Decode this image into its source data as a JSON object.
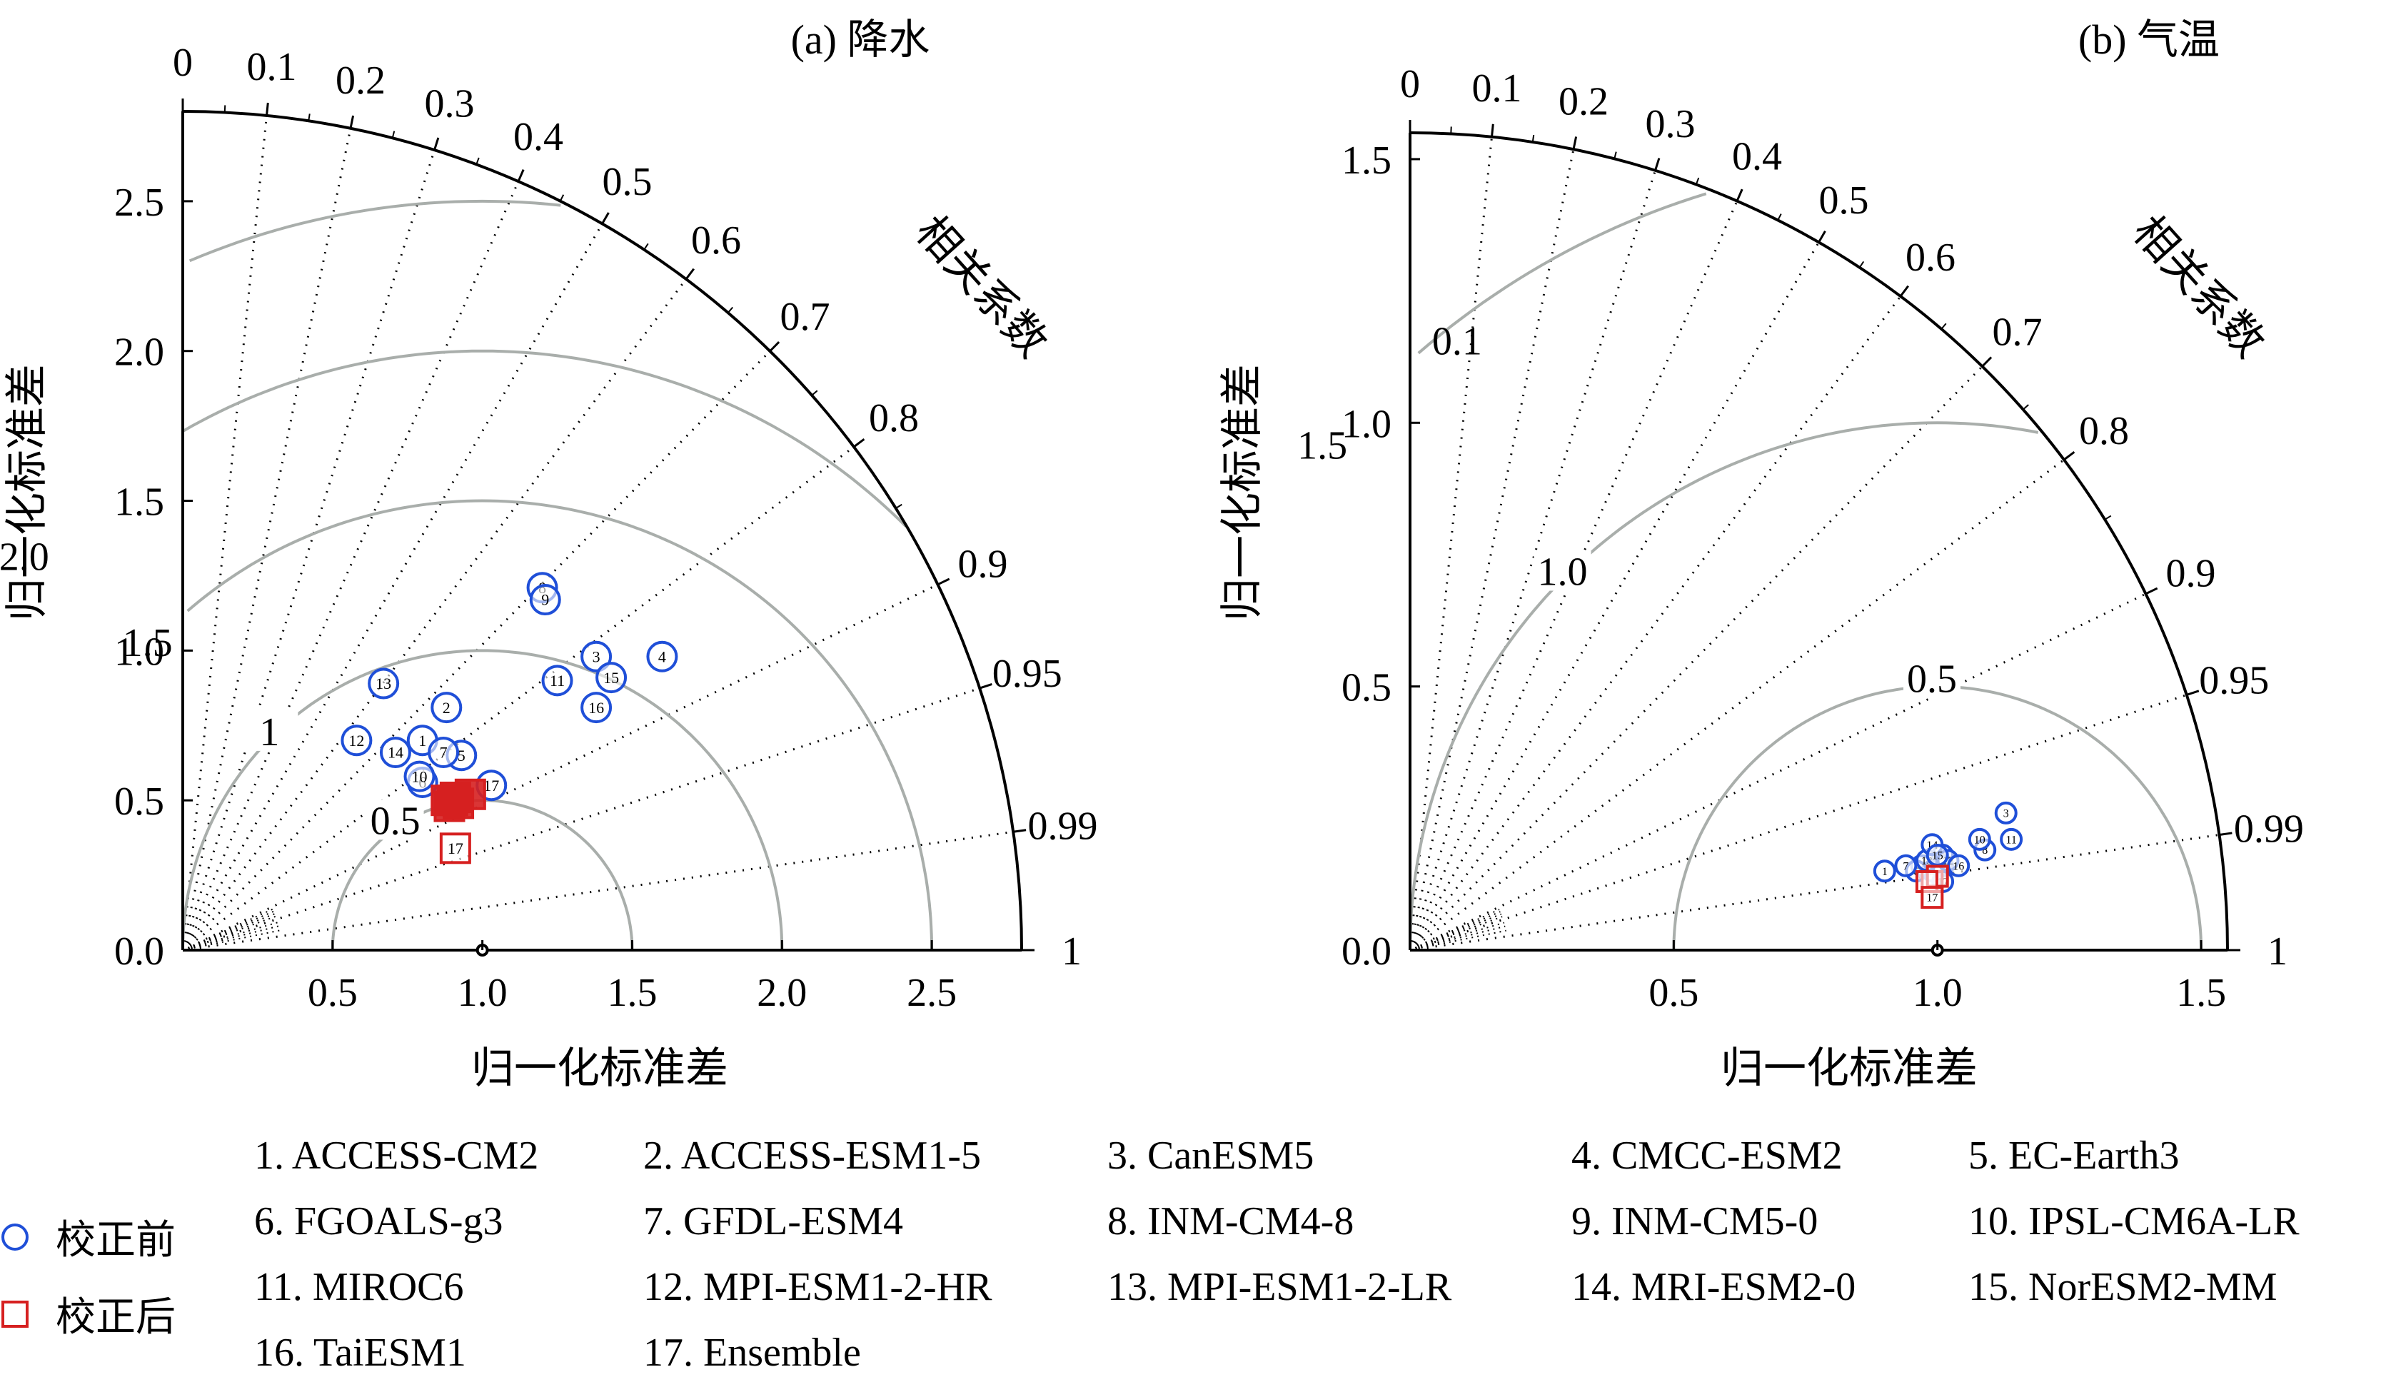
{
  "chart_data": [
    {
      "type": "scatter",
      "subtype": "taylor-diagram",
      "title": "(a) 降水",
      "xlabel": "归一化标准差",
      "ylabel": "归一化标准差",
      "corr_label": "相关系数",
      "max_std": 2.8,
      "std_ticks": [
        0.0,
        0.5,
        1.0,
        1.5,
        2.0,
        2.5
      ],
      "std_tick_labels": [
        "0.0",
        "0.5",
        "1.0",
        "1.5",
        "2.0",
        "2.5"
      ],
      "corr_ticks": [
        0,
        0.1,
        0.2,
        0.3,
        0.4,
        0.5,
        0.6,
        0.7,
        0.8,
        0.9,
        0.95,
        0.99,
        1
      ],
      "corr_tick_labels": [
        "0",
        "0.1",
        "0.2",
        "0.3",
        "0.4",
        "0.5",
        "0.6",
        "0.7",
        "0.8",
        "0.9",
        "0.95",
        "0.99",
        "1"
      ],
      "rms_contours": [
        0.5,
        1.0,
        1.5,
        2.0,
        2.5
      ],
      "rms_labels": [
        "0.5",
        "1",
        "1.5",
        "2.0"
      ],
      "rms_label_values": [
        0.5,
        1.0,
        1.5,
        2.0
      ],
      "before": [
        {
          "id": "1",
          "x": 0.8,
          "y": 0.7
        },
        {
          "id": "2",
          "x": 0.88,
          "y": 0.81
        },
        {
          "id": "3",
          "x": 1.38,
          "y": 0.98
        },
        {
          "id": "4",
          "x": 1.6,
          "y": 0.98
        },
        {
          "id": "5",
          "x": 0.93,
          "y": 0.65
        },
        {
          "id": "6",
          "x": 0.8,
          "y": 0.56
        },
        {
          "id": "7",
          "x": 0.87,
          "y": 0.66
        },
        {
          "id": "8",
          "x": 1.2,
          "y": 1.21
        },
        {
          "id": "9",
          "x": 1.21,
          "y": 1.17
        },
        {
          "id": "10",
          "x": 0.79,
          "y": 0.58
        },
        {
          "id": "11",
          "x": 1.25,
          "y": 0.9
        },
        {
          "id": "12",
          "x": 0.58,
          "y": 0.7
        },
        {
          "id": "13",
          "x": 0.67,
          "y": 0.89
        },
        {
          "id": "14",
          "x": 0.71,
          "y": 0.66
        },
        {
          "id": "15",
          "x": 1.43,
          "y": 0.91
        },
        {
          "id": "16",
          "x": 1.38,
          "y": 0.81
        },
        {
          "id": "17",
          "x": 1.03,
          "y": 0.55
        }
      ],
      "after": [
        {
          "id": "",
          "x": 0.89,
          "y": 0.48
        },
        {
          "id": "",
          "x": 0.9,
          "y": 0.5
        },
        {
          "id": "",
          "x": 0.91,
          "y": 0.51
        },
        {
          "id": "",
          "x": 0.92,
          "y": 0.49
        },
        {
          "id": "",
          "x": 0.88,
          "y": 0.5
        },
        {
          "id": "",
          "x": 0.96,
          "y": 0.52
        },
        {
          "id": "17",
          "x": 0.91,
          "y": 0.34
        }
      ]
    },
    {
      "type": "scatter",
      "subtype": "taylor-diagram",
      "title": "(b) 气温",
      "xlabel": "归一化标准差",
      "ylabel": "归一化标准差",
      "corr_label": "相关系数",
      "max_std": 1.55,
      "std_ticks": [
        0.0,
        0.5,
        1.0,
        1.5
      ],
      "std_tick_labels": [
        "0.0",
        "0.5",
        "1.0",
        "1.5"
      ],
      "corr_ticks": [
        0,
        0.1,
        0.2,
        0.3,
        0.4,
        0.5,
        0.6,
        0.7,
        0.8,
        0.9,
        0.95,
        0.99,
        1
      ],
      "corr_tick_labels": [
        "0",
        "0.1",
        "0.2",
        "0.3",
        "0.4",
        "0.5",
        "0.6",
        "0.7",
        "0.8",
        "0.9",
        "0.95",
        "0.99",
        "1"
      ],
      "inner_corr_label": "0.1",
      "rms_contours": [
        0.5,
        1.0,
        1.5
      ],
      "rms_labels": [
        "0.5",
        "1.0",
        "1.5"
      ],
      "rms_label_values": [
        0.5,
        1.0,
        1.5
      ],
      "before": [
        {
          "id": "1",
          "x": 0.9,
          "y": 0.15
        },
        {
          "id": "2",
          "x": 0.97,
          "y": 0.16
        },
        {
          "id": "3",
          "x": 1.13,
          "y": 0.26
        },
        {
          "id": "4",
          "x": 1.01,
          "y": 0.18
        },
        {
          "id": "5",
          "x": 0.99,
          "y": 0.15
        },
        {
          "id": "6",
          "x": 0.96,
          "y": 0.15
        },
        {
          "id": "7",
          "x": 0.94,
          "y": 0.16
        },
        {
          "id": "8",
          "x": 1.09,
          "y": 0.19
        },
        {
          "id": "9",
          "x": 1.01,
          "y": 0.16
        },
        {
          "id": "10",
          "x": 1.08,
          "y": 0.21
        },
        {
          "id": "11",
          "x": 1.14,
          "y": 0.21
        },
        {
          "id": "12",
          "x": 1.02,
          "y": 0.17
        },
        {
          "id": "13",
          "x": 0.98,
          "y": 0.17
        },
        {
          "id": "14",
          "x": 0.99,
          "y": 0.2
        },
        {
          "id": "15",
          "x": 1.0,
          "y": 0.18
        },
        {
          "id": "16",
          "x": 1.04,
          "y": 0.16
        },
        {
          "id": "17",
          "x": 1.01,
          "y": 0.13
        }
      ],
      "after": [
        {
          "id": "",
          "x": 0.99,
          "y": 0.13
        },
        {
          "id": "",
          "x": 1.0,
          "y": 0.14
        },
        {
          "id": "",
          "x": 0.98,
          "y": 0.13
        },
        {
          "id": "17",
          "x": 0.99,
          "y": 0.1
        }
      ]
    }
  ],
  "legend": {
    "before_label": "校正前",
    "after_label": "校正后",
    "colors": {
      "before": "#1f4fd8",
      "after": "#d62020",
      "grid": "#a9aeab"
    },
    "models": [
      "1. ACCESS-CM2",
      "2. ACCESS-ESM1-5",
      "3. CanESM5",
      "4. CMCC-ESM2",
      "5. EC-Earth3",
      "6. FGOALS-g3",
      "7. GFDL-ESM4",
      "8. INM-CM4-8",
      "9. INM-CM5-0",
      "10. IPSL-CM6A-LR",
      "11. MIROC6",
      "12. MPI-ESM1-2-HR",
      "13. MPI-ESM1-2-LR",
      "14. MRI-ESM2-0",
      "15. NorESM2-MM",
      "16. TaiESM1",
      "17. Ensemble"
    ]
  }
}
